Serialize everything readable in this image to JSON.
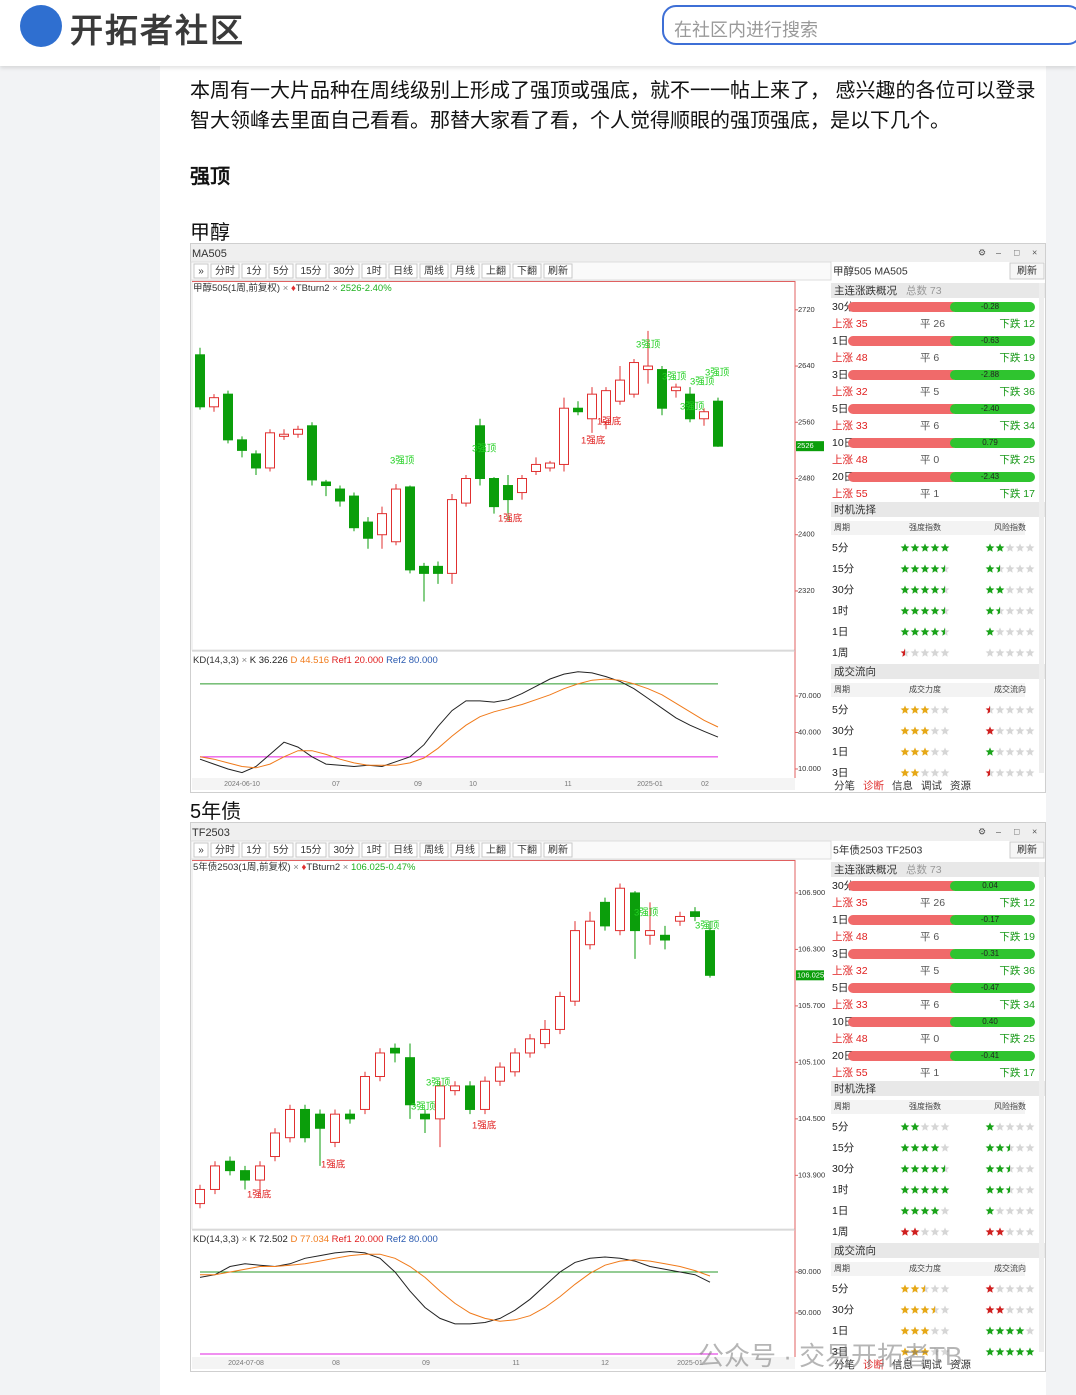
{
  "header": {
    "logo_text": "开拓者社区",
    "search_placeholder": "在社区内进行搜索"
  },
  "article": {
    "intro_lines": [
      "本周有一大片品种在周线级别上形成了强顶或强底，就不一一帖上来了， 感兴趣的各位可以登录",
      "智大领峰去里面自己看看。那替大家看了看，个人觉得顺眼的强顶强底，是以下几个。"
    ],
    "section_title": "强顶"
  },
  "watermark": "公众号 · 交易开拓者TB",
  "charts": [
    {
      "heading": "甲醇",
      "window_title": "MA505",
      "toolbar": [
        "»",
        "分时",
        "1分",
        "5分",
        "15分",
        "30分",
        "1时",
        "日线",
        "周线",
        "月线",
        "上翻",
        "下翻",
        "刷新"
      ],
      "series_label": "甲醇505(1周,前复权)",
      "indicator_name": "TBturn2",
      "indicator_value": "2526-2.40%",
      "ylim": [
        2236,
        2761
      ],
      "yticks": [
        2720,
        2640,
        2560,
        2480,
        2400,
        2320
      ],
      "last_price": {
        "value": 2526,
        "label": "2526"
      },
      "up_color": "#e03030",
      "down_color": "#0b9e0b",
      "candles": [
        [
          2656,
          2666,
          2578,
          2582
        ],
        [
          2582,
          2600,
          2575,
          2595
        ],
        [
          2600,
          2605,
          2530,
          2535
        ],
        [
          2535,
          2540,
          2510,
          2520
        ],
        [
          2515,
          2520,
          2485,
          2495
        ],
        [
          2495,
          2550,
          2490,
          2545
        ],
        [
          2540,
          2550,
          2535,
          2543
        ],
        [
          2543,
          2555,
          2538,
          2550
        ],
        [
          2555,
          2560,
          2470,
          2478
        ],
        [
          2475,
          2478,
          2455,
          2470
        ],
        [
          2465,
          2470,
          2440,
          2448
        ],
        [
          2455,
          2460,
          2405,
          2410
        ],
        [
          2418,
          2425,
          2380,
          2395
        ],
        [
          2400,
          2440,
          2380,
          2430
        ],
        [
          2390,
          2472,
          2385,
          2465
        ],
        [
          2468,
          2470,
          2345,
          2350
        ],
        [
          2355,
          2360,
          2305,
          2345
        ],
        [
          2355,
          2362,
          2330,
          2345
        ],
        [
          2345,
          2458,
          2330,
          2450
        ],
        [
          2445,
          2485,
          2440,
          2480
        ],
        [
          2555,
          2565,
          2470,
          2480
        ],
        [
          2480,
          2482,
          2430,
          2440
        ],
        [
          2470,
          2485,
          2420,
          2450
        ],
        [
          2460,
          2485,
          2450,
          2480
        ],
        [
          2490,
          2510,
          2485,
          2500
        ],
        [
          2495,
          2505,
          2490,
          2502
        ],
        [
          2500,
          2595,
          2490,
          2580
        ],
        [
          2580,
          2590,
          2570,
          2575
        ],
        [
          2565,
          2610,
          2545,
          2600
        ],
        [
          2560,
          2610,
          2550,
          2605
        ],
        [
          2590,
          2640,
          2585,
          2620
        ],
        [
          2600,
          2650,
          2595,
          2645
        ],
        [
          2635,
          2690,
          2615,
          2640
        ],
        [
          2635,
          2640,
          2570,
          2580
        ],
        [
          2605,
          2615,
          2595,
          2610
        ],
        [
          2600,
          2610,
          2560,
          2565
        ],
        [
          2565,
          2580,
          2555,
          2575
        ],
        [
          2590,
          2595,
          2525,
          2526
        ]
      ],
      "annotations": [
        {
          "text": "3强顶",
          "color": "#22d022"
        },
        {
          "text": "3强顶",
          "color": "#22d022"
        },
        {
          "text": "3强顶",
          "color": "#22d022"
        },
        {
          "text": "3强顶",
          "color": "#22d022"
        },
        {
          "text": "3强顶",
          "color": "#22d022"
        },
        {
          "text": "1强底",
          "color": "#e02020"
        },
        {
          "text": "1强底",
          "color": "#e02020"
        },
        {
          "text": "3强顶",
          "color": "#22d022"
        },
        {
          "text": "3强顶",
          "color": "#22d022"
        },
        {
          "text": "1强底",
          "color": "#e02020"
        }
      ],
      "dates": [
        "2024-06-10",
        "07",
        "09",
        "10",
        "11",
        "2025-01",
        "02"
      ],
      "kd": {
        "label": "KD(14,3,3)",
        "k_label": "K 36.226",
        "d_label": "D 44.516",
        "ref1_label": "Ref1 20.000",
        "ref2_label": "Ref2 80.000",
        "ylim": [
          3.4,
          106.2
        ],
        "yticks": [
          {
            "value": 70,
            "label": "70.000"
          },
          {
            "value": 40,
            "label": "40.000"
          },
          {
            "value": 10,
            "label": "10.000"
          }
        ],
        "ref_lines": [
          {
            "value": 20,
            "color": "#e020e0"
          },
          {
            "value": 80,
            "color": "#2a9a2a"
          }
        ],
        "k_color": "#222222",
        "d_color": "#f07a1a",
        "k": [
          18,
          14,
          10,
          7,
          12,
          22,
          32,
          28,
          20,
          14,
          13,
          12,
          13,
          12,
          16,
          20,
          30,
          45,
          58,
          66,
          66,
          65,
          67,
          72,
          78,
          84,
          88,
          90,
          89,
          86,
          82,
          76,
          68,
          60,
          52,
          46,
          41,
          36.226
        ],
        "d": [
          20,
          18,
          15,
          12,
          11,
          14,
          20,
          25,
          25,
          22,
          18,
          15,
          13,
          13,
          13,
          15,
          19,
          27,
          37,
          46,
          53,
          57,
          60,
          63,
          67,
          71,
          76,
          80,
          83,
          84,
          83,
          80,
          76,
          71,
          64,
          57,
          50,
          44.516
        ]
      },
      "side": {
        "name": "甲醇505 MA505",
        "refresh": "刷新",
        "summary_title": "主连涨跌概况",
        "summary_total": "总数 73",
        "rows": [
          {
            "period": "30分",
            "value": "-0.28",
            "up": "上涨 35",
            "flat": "平 26",
            "down": "下跌 12"
          },
          {
            "period": "1日",
            "value": "-0.63",
            "up": "上涨 48",
            "flat": "平 6",
            "down": "下跌 19"
          },
          {
            "period": "3日",
            "value": "-2.88",
            "up": "上涨 32",
            "flat": "平 5",
            "down": "下跌 36"
          },
          {
            "period": "5日",
            "value": "-2.40",
            "up": "上涨 33",
            "flat": "平 6",
            "down": "下跌 34"
          },
          {
            "period": "10日",
            "value": "0.79",
            "up": "上涨 48",
            "flat": "平 0",
            "down": "下跌 25"
          },
          {
            "period": "20日",
            "value": "-2.43",
            "up": "上涨 55",
            "flat": "平 1",
            "down": "下跌 17"
          }
        ],
        "timing_title": "时机洗择",
        "timing_headers": [
          "周期",
          "强度指数",
          "风险指数"
        ],
        "timing": [
          {
            "period": "5分",
            "strength": 5,
            "risk": 2,
            "color": "#1aa31a"
          },
          {
            "period": "15分",
            "strength": 4.5,
            "risk": 1.5,
            "color": "#1aa31a"
          },
          {
            "period": "30分",
            "strength": 4.5,
            "risk": 2,
            "color": "#1aa31a"
          },
          {
            "period": "1时",
            "strength": 4.5,
            "risk": 1.5,
            "color": "#1aa31a"
          },
          {
            "period": "1日",
            "strength": 4.5,
            "risk": 1,
            "color": "#1aa31a"
          },
          {
            "period": "1周",
            "strength": 0.5,
            "risk": 0,
            "color": "#d02020"
          }
        ],
        "flow_title": "成交流向",
        "flow_headers": [
          "周期",
          "成交力度",
          "成交流向"
        ],
        "flow_force_color": "#e6a817",
        "flow": [
          {
            "period": "5分",
            "force": 3,
            "direction": 0.5,
            "color": "#d02020"
          },
          {
            "period": "30分",
            "force": 3,
            "direction": 1,
            "color": "#d02020"
          },
          {
            "period": "1日",
            "force": 3,
            "direction": 1,
            "color": "#1aa31a"
          },
          {
            "period": "3日",
            "force": 2,
            "direction": 0.5,
            "color": "#d02020"
          }
        ],
        "tabs": [
          "分笔",
          "诊断",
          "信息",
          "调试",
          "资源"
        ]
      }
    },
    {
      "heading": "5年债",
      "window_title": "TF2503",
      "toolbar": [
        "»",
        "分时",
        "1分",
        "5分",
        "15分",
        "30分",
        "1时",
        "日线",
        "周线",
        "月线",
        "上翻",
        "下翻",
        "刷新"
      ],
      "series_label": "5年债2503(1周,前复权)",
      "indicator_name": "TBturn2",
      "indicator_value": "106.025-0.47%",
      "ylim": [
        103.33,
        107.25
      ],
      "yticks": [
        {
          "value": 106.9,
          "label": "106.900"
        },
        {
          "value": 106.3,
          "label": "106.300"
        },
        {
          "value": 105.7,
          "label": "105.700"
        },
        {
          "value": 105.1,
          "label": "105.100"
        },
        {
          "value": 104.5,
          "label": "104.500"
        },
        {
          "value": 103.9,
          "label": "103.900"
        }
      ],
      "last_price": {
        "value": 106.025,
        "label": "106.025"
      },
      "up_color": "#e03030",
      "down_color": "#0b9e0b",
      "candles": [
        [
          103.6,
          103.8,
          103.55,
          103.75
        ],
        [
          103.75,
          104.05,
          103.7,
          104.0
        ],
        [
          104.05,
          104.1,
          103.9,
          103.95
        ],
        [
          103.95,
          104.0,
          103.75,
          103.85
        ],
        [
          103.85,
          104.05,
          103.7,
          104.0
        ],
        [
          104.1,
          104.4,
          104.05,
          104.35
        ],
        [
          104.3,
          104.65,
          104.25,
          104.6
        ],
        [
          104.6,
          104.65,
          104.25,
          104.3
        ],
        [
          104.55,
          104.6,
          104.0,
          104.4
        ],
        [
          104.25,
          104.6,
          104.2,
          104.55
        ],
        [
          104.55,
          104.6,
          104.45,
          104.5
        ],
        [
          104.6,
          105.0,
          104.55,
          104.95
        ],
        [
          104.95,
          105.25,
          104.9,
          105.2
        ],
        [
          105.25,
          105.3,
          105.1,
          105.2
        ],
        [
          105.15,
          105.3,
          104.5,
          104.65
        ],
        [
          104.55,
          104.6,
          104.35,
          104.5
        ],
        [
          104.5,
          104.9,
          104.2,
          104.85
        ],
        [
          104.8,
          104.9,
          104.75,
          104.85
        ],
        [
          104.85,
          104.9,
          104.55,
          104.6
        ],
        [
          104.6,
          104.95,
          104.55,
          104.9
        ],
        [
          104.9,
          105.1,
          104.85,
          105.05
        ],
        [
          105.0,
          105.25,
          104.95,
          105.2
        ],
        [
          105.2,
          105.4,
          105.15,
          105.35
        ],
        [
          105.3,
          105.55,
          105.25,
          105.45
        ],
        [
          105.45,
          105.85,
          105.4,
          105.8
        ],
        [
          105.75,
          106.6,
          105.7,
          106.5
        ],
        [
          106.35,
          106.7,
          106.3,
          106.6
        ],
        [
          106.8,
          106.85,
          106.5,
          106.55
        ],
        [
          106.5,
          107.0,
          106.45,
          106.95
        ],
        [
          106.9,
          106.92,
          106.2,
          106.5
        ],
        [
          106.45,
          106.8,
          106.35,
          106.5
        ],
        [
          106.45,
          106.55,
          106.3,
          106.4
        ],
        [
          106.6,
          106.7,
          106.55,
          106.65
        ],
        [
          106.7,
          106.75,
          106.6,
          106.65
        ],
        [
          106.5,
          106.6,
          106.0,
          106.025
        ]
      ],
      "annotations": [
        {
          "text": "3强顶",
          "color": "#22d022"
        },
        {
          "text": "3强顶",
          "color": "#22d022"
        },
        {
          "text": "3强顶",
          "color": "#22d022"
        },
        {
          "text": "3强顶",
          "color": "#22d022"
        },
        {
          "text": "1强底",
          "color": "#e02020"
        },
        {
          "text": "1强底",
          "color": "#e02020"
        },
        {
          "text": "1强底",
          "color": "#e02020"
        }
      ],
      "dates": [
        "2024-07-08",
        "08",
        "09",
        "11",
        "12",
        "2025-01"
      ],
      "kd": {
        "label": "KD(14,3,3)",
        "k_label": "K 72.502",
        "d_label": "D 77.034",
        "ref1_label": "Ref1 20.000",
        "ref2_label": "Ref2 80.000",
        "ylim": [
          18.5,
          110
        ],
        "yticks": [
          {
            "value": 80,
            "label": "80.000"
          },
          {
            "value": 50,
            "label": "50.000"
          }
        ],
        "ref_lines": [
          {
            "value": 20,
            "color": "#e020e0"
          },
          {
            "value": 80,
            "color": "#2a9a2a"
          }
        ],
        "k_color": "#222222",
        "d_color": "#f07a1a",
        "k": [
          76,
          78,
          84,
          86,
          85,
          84,
          86,
          90,
          92,
          94,
          95,
          94,
          90,
          80,
          66,
          54,
          46,
          42,
          42,
          43,
          46,
          52,
          60,
          70,
          80,
          87,
          90,
          91,
          90,
          88,
          84,
          82,
          80,
          78,
          72.502
        ],
        "d": [
          78,
          78,
          80,
          82,
          84,
          84,
          85,
          86,
          88,
          90,
          92,
          93,
          93,
          90,
          84,
          76,
          66,
          57,
          50,
          46,
          44,
          45,
          48,
          54,
          62,
          71,
          79,
          85,
          88,
          89,
          88,
          86,
          84,
          81,
          77.034
        ]
      },
      "side": {
        "name": "5年债2503 TF2503",
        "refresh": "刷新",
        "summary_title": "主连涨跌概况",
        "summary_total": "总数 73",
        "rows": [
          {
            "period": "30分",
            "value": "0.04",
            "up": "上涨 35",
            "flat": "平 26",
            "down": "下跌 12"
          },
          {
            "period": "1日",
            "value": "-0.17",
            "up": "上涨 48",
            "flat": "平 6",
            "down": "下跌 19"
          },
          {
            "period": "3日",
            "value": "-0.31",
            "up": "上涨 32",
            "flat": "平 5",
            "down": "下跌 36"
          },
          {
            "period": "5日",
            "value": "-0.47",
            "up": "上涨 33",
            "flat": "平 6",
            "down": "下跌 34"
          },
          {
            "period": "10日",
            "value": "0.40",
            "up": "上涨 48",
            "flat": "平 0",
            "down": "下跌 25"
          },
          {
            "period": "20日",
            "value": "-0.41",
            "up": "上涨 55",
            "flat": "平 1",
            "down": "下跌 17"
          }
        ],
        "timing_title": "时机洗择",
        "timing_headers": [
          "周期",
          "强度指数",
          "风险指数"
        ],
        "timing": [
          {
            "period": "5分",
            "strength": 2,
            "risk": 1,
            "color": "#1aa31a"
          },
          {
            "period": "15分",
            "strength": 4,
            "risk": 2.5,
            "color": "#1aa31a"
          },
          {
            "period": "30分",
            "strength": 4.5,
            "risk": 2.5,
            "color": "#1aa31a"
          },
          {
            "period": "1时",
            "strength": 5,
            "risk": 2.5,
            "color": "#1aa31a"
          },
          {
            "period": "1日",
            "strength": 4,
            "risk": 1,
            "color": "#1aa31a"
          },
          {
            "period": "1周",
            "strength": 2,
            "risk": 2,
            "color": "#d02020"
          }
        ],
        "flow_title": "成交流向",
        "flow_headers": [
          "周期",
          "成交力度",
          "成交流向"
        ],
        "flow_force_color": "#e6a817",
        "flow": [
          {
            "period": "5分",
            "force": 2.5,
            "direction": 1,
            "color": "#d02020"
          },
          {
            "period": "30分",
            "force": 3.5,
            "direction": 2,
            "color": "#d02020"
          },
          {
            "period": "1日",
            "force": 3,
            "direction": 4,
            "color": "#1aa31a"
          },
          {
            "period": "3日",
            "force": 3,
            "direction": 5,
            "color": "#1aa31a"
          }
        ],
        "tabs": [
          "分笔",
          "诊断",
          "信息",
          "调试",
          "资源"
        ]
      }
    }
  ]
}
